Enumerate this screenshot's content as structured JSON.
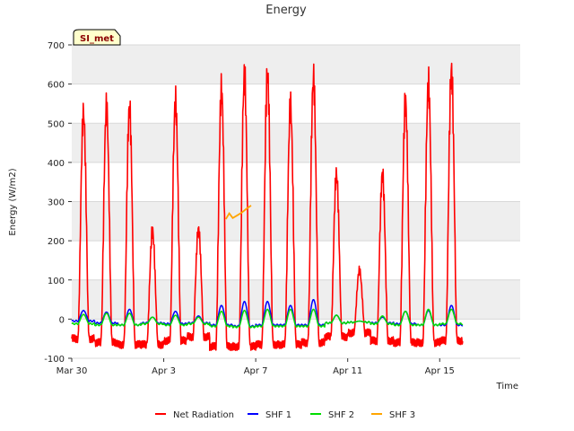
{
  "chart_data": {
    "type": "line",
    "title": "Energy",
    "xlabel": "Time",
    "ylabel": "Energy (W/m2)",
    "site_label": "SI_met",
    "x_unit": "days since Mar 30",
    "xlim": [
      0,
      19.5
    ],
    "ylim": [
      -100,
      700
    ],
    "y_ticks": [
      -100,
      0,
      100,
      200,
      300,
      400,
      500,
      600,
      700
    ],
    "x_ticks": [
      {
        "value": 0,
        "label": "Mar 30"
      },
      {
        "value": 4,
        "label": "Apr 3"
      },
      {
        "value": 8,
        "label": "Apr 7"
      },
      {
        "value": 12,
        "label": "Apr 11"
      },
      {
        "value": 16,
        "label": "Apr 15"
      }
    ],
    "daily": {
      "start_day": 0,
      "net_peak": [
        525,
        540,
        540,
        225,
        555,
        230,
        585,
        620,
        625,
        545,
        615,
        370,
        125,
        370,
        555,
        600,
        635
      ],
      "net_night": [
        -50,
        -60,
        -65,
        -65,
        -55,
        -45,
        -70,
        -70,
        -65,
        -65,
        -60,
        -45,
        -35,
        -55,
        -60,
        -60,
        -55
      ],
      "shf1_peak": [
        22,
        18,
        25,
        5,
        20,
        8,
        35,
        45,
        45,
        35,
        50,
        10,
        -5,
        5,
        20,
        22,
        35
      ],
      "shf1_night": [
        -5,
        -10,
        -15,
        -10,
        -12,
        -10,
        -15,
        -18,
        -15,
        -15,
        -15,
        -10,
        -8,
        -10,
        -12,
        -15,
        -15
      ],
      "shf2_peak": [
        12,
        15,
        15,
        5,
        10,
        5,
        20,
        22,
        25,
        25,
        25,
        10,
        -5,
        8,
        20,
        25,
        25
      ],
      "shf2_night": [
        -12,
        -15,
        -15,
        -12,
        -15,
        -12,
        -18,
        -20,
        -18,
        -18,
        -18,
        -10,
        -8,
        -12,
        -15,
        -15,
        -12
      ]
    },
    "series": [
      {
        "name": "Net Radiation",
        "color": "#ff0000"
      },
      {
        "name": "SHF 1",
        "color": "#0000ff"
      },
      {
        "name": "SHF 2",
        "color": "#00dd00"
      },
      {
        "name": "SHF 3",
        "color": "#ffa500",
        "x": [
          6.7,
          6.85,
          7.0,
          7.2,
          7.4,
          7.6,
          7.8
        ],
        "values": [
          255,
          270,
          258,
          265,
          272,
          282,
          290
        ]
      }
    ]
  }
}
